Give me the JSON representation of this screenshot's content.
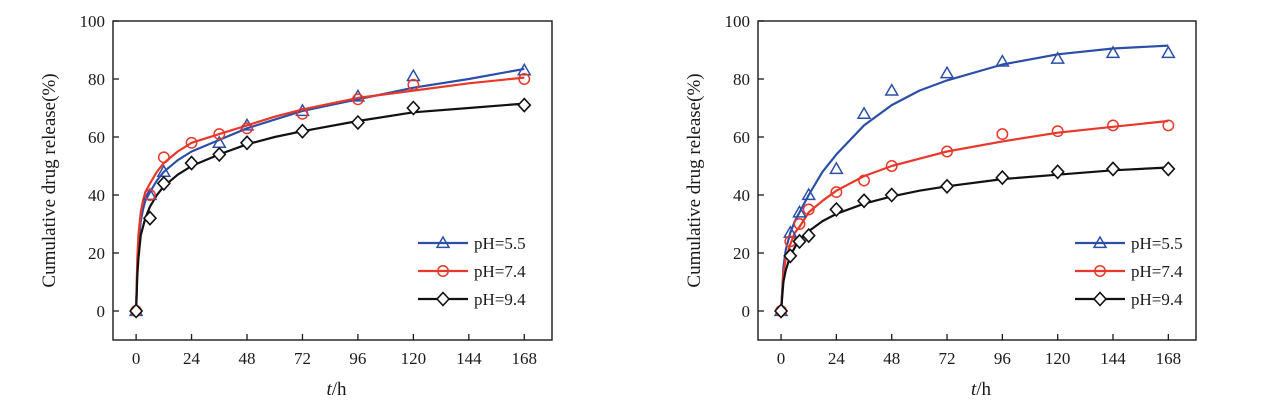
{
  "chart_data": [
    {
      "type": "line",
      "title": "",
      "xlabel": {
        "var": "t",
        "unit": "/h"
      },
      "ylabel": "Cumulative drug release(%)",
      "xlim": [
        -10,
        180
      ],
      "ylim": [
        -10,
        100
      ],
      "x_ticks": [
        0,
        24,
        48,
        72,
        96,
        120,
        144,
        168
      ],
      "y_ticks": [
        0,
        20,
        40,
        60,
        80,
        100
      ],
      "legend_position": "bottom-right",
      "series": [
        {
          "name": "pH=5.5",
          "color": "#2b4fa8",
          "marker": "triangle",
          "x": [
            0,
            6,
            12,
            36,
            48,
            72,
            96,
            120,
            168
          ],
          "y": [
            0,
            40,
            48,
            58,
            64,
            69,
            74,
            81,
            83
          ],
          "fit_x": [
            0,
            0.5,
            1,
            2,
            3,
            4,
            6,
            9,
            12,
            18,
            24,
            36,
            48,
            60,
            72,
            96,
            120,
            144,
            168
          ],
          "fit_y": [
            0,
            15,
            22,
            31,
            35,
            38,
            41,
            45,
            48,
            52,
            55,
            59,
            63,
            66,
            69,
            73,
            77,
            80,
            83.5
          ]
        },
        {
          "name": "pH=7.4",
          "color": "#e8382a",
          "marker": "circle",
          "x": [
            0,
            6,
            12,
            24,
            36,
            48,
            72,
            96,
            120,
            168
          ],
          "y": [
            0,
            40,
            53,
            58,
            61,
            63,
            68,
            73,
            78,
            80
          ],
          "fit_x": [
            0,
            0.5,
            1,
            2,
            3,
            4,
            6,
            9,
            12,
            18,
            24,
            36,
            48,
            60,
            72,
            96,
            120,
            144,
            168
          ],
          "fit_y": [
            0,
            18,
            26,
            34,
            38,
            41,
            44,
            48,
            51,
            55,
            58,
            61,
            64,
            67,
            69.5,
            73.5,
            76,
            78.5,
            80.5
          ]
        },
        {
          "name": "pH=9.4",
          "color": "#111111",
          "marker": "diamond",
          "x": [
            0,
            6,
            12,
            24,
            36,
            48,
            72,
            96,
            120,
            168
          ],
          "y": [
            0,
            32,
            44,
            51,
            54,
            58,
            62,
            65,
            70,
            71
          ],
          "fit_x": [
            0,
            0.5,
            1,
            2,
            3,
            4,
            6,
            9,
            12,
            18,
            24,
            36,
            48,
            60,
            72,
            96,
            120,
            144,
            168
          ],
          "fit_y": [
            0,
            12,
            18,
            26,
            29,
            32,
            36,
            40,
            43,
            47,
            50,
            54,
            57.5,
            60,
            62,
            65.5,
            68.5,
            70,
            71.5
          ]
        }
      ]
    },
    {
      "type": "line",
      "title": "",
      "xlabel": {
        "var": "t",
        "unit": "/h"
      },
      "ylabel": "Cumulative drug release(%)",
      "xlim": [
        -10,
        180
      ],
      "ylim": [
        -10,
        100
      ],
      "x_ticks": [
        0,
        24,
        48,
        72,
        96,
        120,
        144,
        168
      ],
      "y_ticks": [
        0,
        20,
        40,
        60,
        80,
        100
      ],
      "legend_position": "bottom-right",
      "series": [
        {
          "name": "pH=5.5",
          "color": "#2b4fa8",
          "marker": "triangle",
          "x": [
            0,
            4,
            8,
            12,
            24,
            36,
            48,
            72,
            96,
            120,
            144,
            168
          ],
          "y": [
            0,
            27,
            34,
            40,
            49,
            68,
            76,
            82,
            86,
            87,
            89,
            89
          ],
          "fit_x": [
            0,
            1,
            2,
            4,
            6,
            8,
            12,
            18,
            24,
            36,
            48,
            60,
            72,
            96,
            120,
            144,
            168
          ],
          "fit_y": [
            0,
            15,
            21,
            27,
            31,
            34,
            40,
            48,
            54,
            64,
            71,
            76,
            79.5,
            85,
            88.5,
            90.5,
            91.5
          ]
        },
        {
          "name": "pH=7.4",
          "color": "#e8382a",
          "marker": "circle",
          "x": [
            0,
            4,
            8,
            12,
            24,
            36,
            48,
            72,
            96,
            120,
            144,
            168
          ],
          "y": [
            0,
            24,
            30,
            35,
            41,
            45,
            50,
            55,
            61,
            62,
            64,
            64
          ],
          "fit_x": [
            0,
            1,
            2,
            4,
            6,
            8,
            12,
            18,
            24,
            36,
            48,
            60,
            72,
            96,
            120,
            144,
            168
          ],
          "fit_y": [
            0,
            13,
            18,
            23,
            27,
            29,
            34,
            38,
            41.5,
            46.5,
            50,
            52.5,
            55,
            58.5,
            61.5,
            63.5,
            65.5
          ]
        },
        {
          "name": "pH=9.4",
          "color": "#111111",
          "marker": "diamond",
          "x": [
            0,
            4,
            8,
            12,
            24,
            36,
            48,
            72,
            96,
            120,
            144,
            168
          ],
          "y": [
            0,
            19,
            24,
            26,
            35,
            38,
            40,
            43,
            46,
            48,
            49,
            49
          ],
          "fit_x": [
            0,
            1,
            2,
            4,
            6,
            8,
            12,
            18,
            24,
            36,
            48,
            60,
            72,
            96,
            120,
            144,
            168
          ],
          "fit_y": [
            0,
            10,
            14,
            19,
            22,
            24.5,
            27.5,
            31,
            33.5,
            37,
            39.5,
            41.5,
            43,
            45.5,
            47,
            48.5,
            49.5
          ]
        }
      ]
    }
  ]
}
